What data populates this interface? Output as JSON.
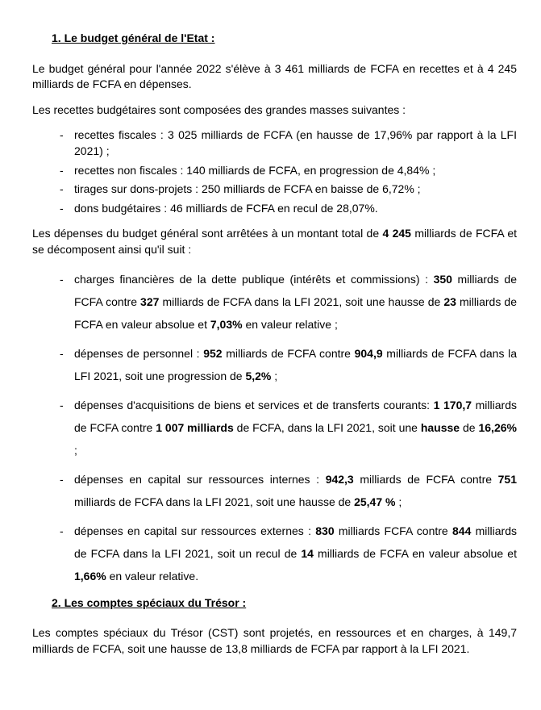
{
  "heading1": "1.  Le budget général de l'Etat :",
  "p1": "Le budget général pour l'année 2022 s'élève à 3 461 milliards de FCFA en recettes et à 4 245 milliards de FCFA en dépenses.",
  "p2": "Les recettes budgétaires sont composées des grandes masses suivantes :",
  "recettes": [
    "recettes fiscales : 3 025 milliards de FCFA (en hausse de 17,96% par rapport à la LFI 2021) ;",
    "recettes non fiscales : 140 milliards de FCFA, en progression de 4,84% ;",
    "tirages sur dons-projets : 250 milliards de FCFA en baisse de 6,72% ;",
    "dons budgétaires : 46 milliards de FCFA en recul de 28,07%."
  ],
  "p3_a": "Les dépenses du budget général sont arrêtées à un montant total de ",
  "p3_b": "4 245",
  "p3_c": " milliards de FCFA et se décomposent ainsi qu'il suit :",
  "d1_a": "charges financières de la dette publique (intérêts et commissions) : ",
  "d1_b": "350",
  "d1_c": " milliards de FCFA contre ",
  "d1_d": "327",
  "d1_e": " milliards de FCFA dans la LFI 2021, soit une hausse de ",
  "d1_f": "23",
  "d1_g": " milliards de FCFA en valeur absolue et  ",
  "d1_h": "7,03%",
  "d1_i": " en valeur relative ;",
  "d2_a": "dépenses de personnel : ",
  "d2_b": "952",
  "d2_c": "  milliards de FCFA contre ",
  "d2_d": "904,9",
  "d2_e": " milliards de FCFA dans la LFI 2021, soit une progression de ",
  "d2_f": "5,2%",
  "d2_g": " ;",
  "d3_a": "dépenses d'acquisitions de biens et services et de transferts courants: ",
  "d3_b": "1 170,7",
  "d3_c": " milliards de FCFA contre ",
  "d3_d": "1 007 milliards",
  "d3_e": " de FCFA, dans la LFI 2021, soit une ",
  "d3_f": "hausse",
  "d3_g": " de ",
  "d3_h": "16,26%",
  "d3_i": " ;",
  "d4_a": "dépenses en capital sur ressources internes : ",
  "d4_b": "942,3",
  "d4_c": " milliards de FCFA contre ",
  "d4_d": "751",
  "d4_e": " milliards de FCFA dans la LFI 2021, soit une hausse de ",
  "d4_f": "25,47 %",
  "d4_g": " ;",
  "d5_a": "dépenses en capital sur ressources externes : ",
  "d5_b": "830",
  "d5_c": " milliards FCFA contre ",
  "d5_d": "844",
  "d5_e": " milliards de FCFA dans la LFI 2021, soit un recul de ",
  "d5_f": "14",
  "d5_g": " milliards de FCFA en valeur absolue et ",
  "d5_h": "1,66%",
  "d5_i": " en valeur relative.",
  "heading2": "2.  Les comptes spéciaux du Trésor :",
  "p4": "Les comptes spéciaux du Trésor (CST) sont projetés, en ressources et en charges, à 149,7 milliards de FCFA, soit une hausse de 13,8 milliards de FCFA par rapport à la LFI 2021.",
  "colors": {
    "text": "#000000",
    "background": "#ffffff"
  },
  "typography": {
    "font_family": "Verdana",
    "body_fontsize": 14
  }
}
